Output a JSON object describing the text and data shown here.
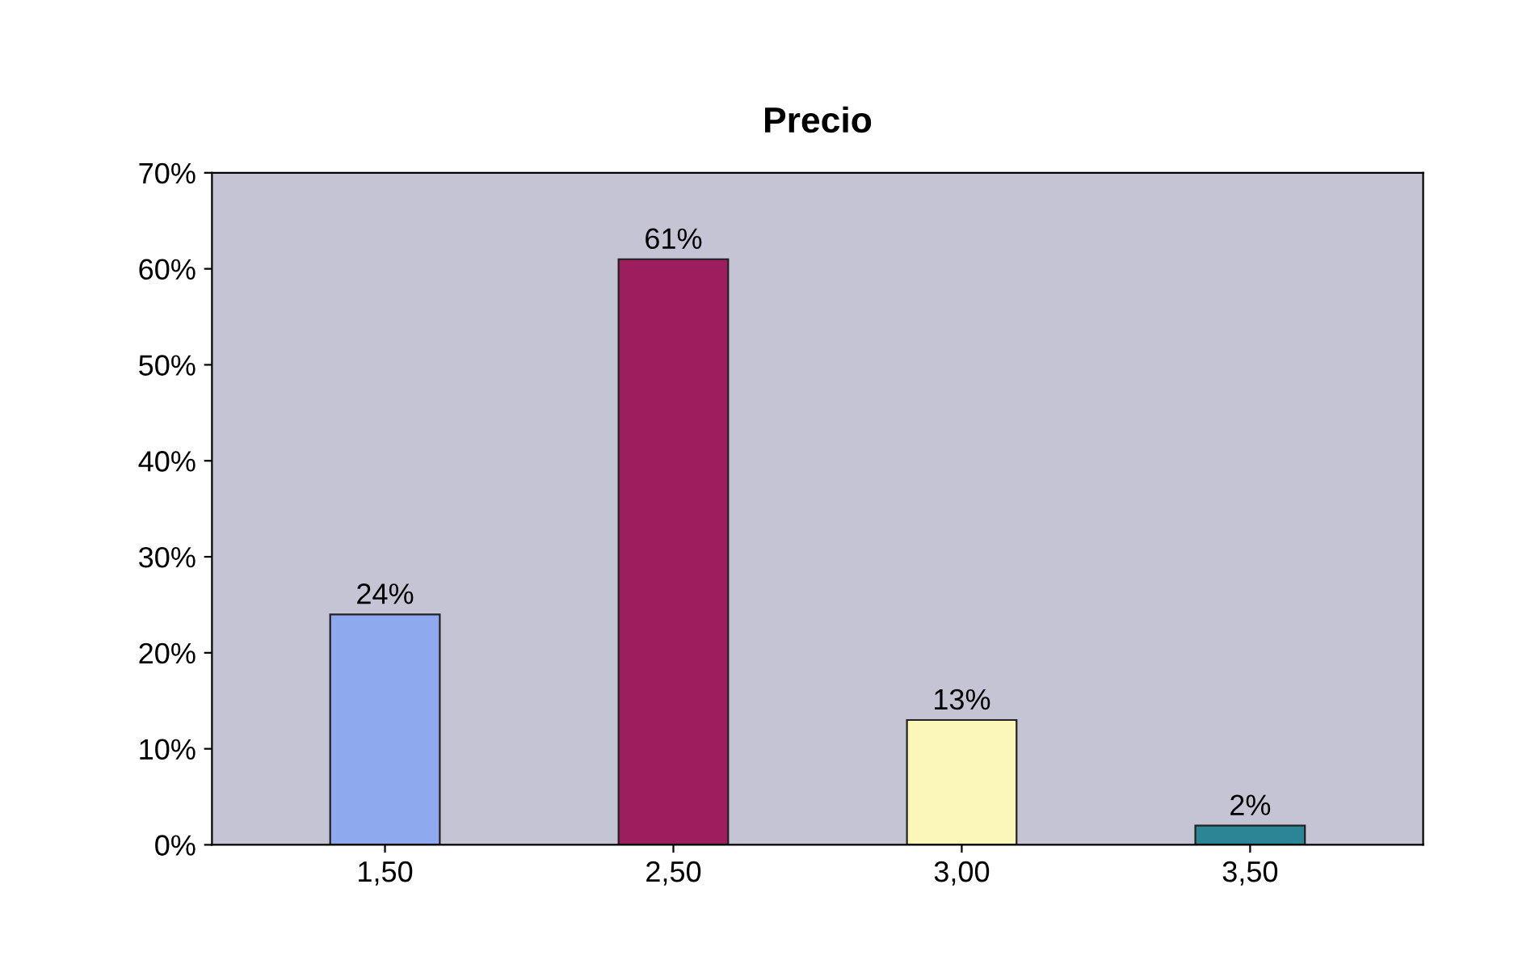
{
  "chart_data": {
    "type": "bar",
    "title": "Precio",
    "categories": [
      "1,50",
      "2,50",
      "3,00",
      "3,50"
    ],
    "values": [
      24,
      61,
      13,
      2
    ],
    "colors": [
      "#8fa9ee",
      "#9c1e5e",
      "#fbf7b8",
      "#2b8595"
    ],
    "value_labels": [
      "24%",
      "61%",
      "13%",
      "2%"
    ],
    "ylim": [
      0,
      70
    ],
    "yticks": [
      {
        "value": 0,
        "label": "0%"
      },
      {
        "value": 10,
        "label": "10%"
      },
      {
        "value": 20,
        "label": "20%"
      },
      {
        "value": 30,
        "label": "30%"
      },
      {
        "value": 40,
        "label": "40%"
      },
      {
        "value": 50,
        "label": "50%"
      },
      {
        "value": 60,
        "label": "60%"
      },
      {
        "value": 70,
        "label": "70%"
      }
    ],
    "grid": false,
    "legend": false
  }
}
